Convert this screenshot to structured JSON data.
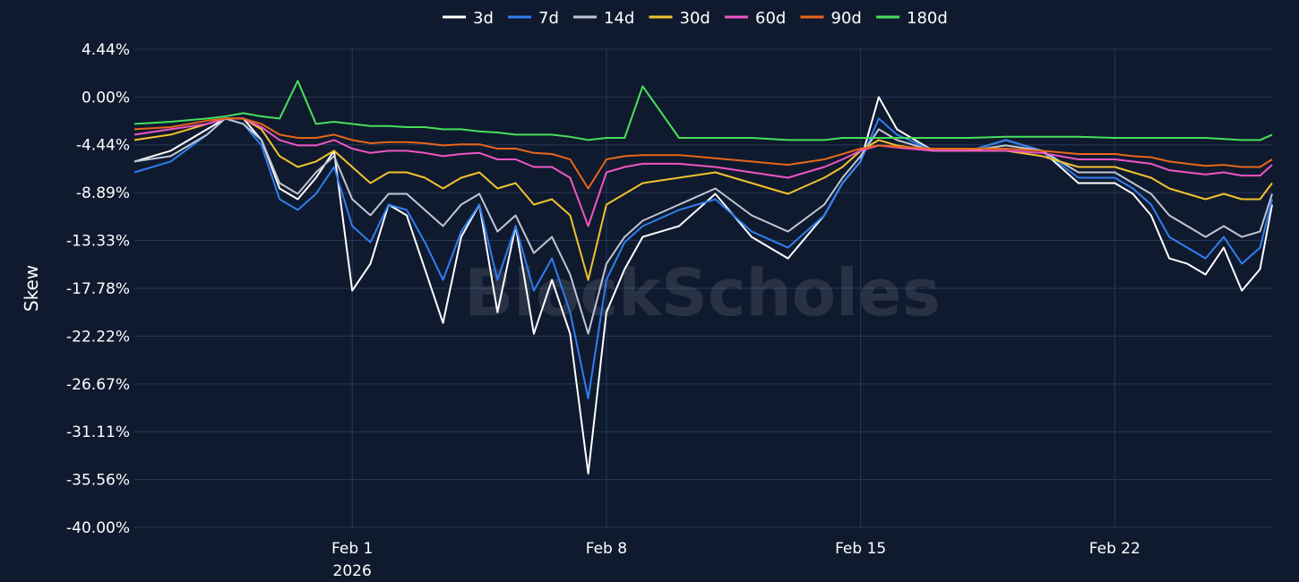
{
  "chart_data": {
    "type": "line",
    "ylabel": "Skew",
    "watermark": "BlockScholes",
    "legend_position": "top-center",
    "grid": true,
    "x_range": [
      "2026-01-26T00:00",
      "2026-02-26T08:00"
    ],
    "ylim": [
      -40.0,
      4.44
    ],
    "y_ticks": [
      "4.44%",
      "0.00%",
      "-4.44%",
      "-8.89%",
      "-13.33%",
      "-17.78%",
      "-22.22%",
      "-26.67%",
      "-31.11%",
      "-35.56%",
      "-40.00%"
    ],
    "y_tick_values": [
      4.44,
      0.0,
      -4.44,
      -8.89,
      -13.33,
      -17.78,
      -22.22,
      -26.67,
      -31.11,
      -35.56,
      -40.0
    ],
    "x_ticks": [
      {
        "date": "2026-02-01",
        "label": "Feb 1",
        "sublabel": "2026"
      },
      {
        "date": "2026-02-08",
        "label": "Feb 8",
        "sublabel": ""
      },
      {
        "date": "2026-02-15",
        "label": "Feb 15",
        "sublabel": ""
      },
      {
        "date": "2026-02-22",
        "label": "Feb 22",
        "sublabel": ""
      }
    ],
    "x": [
      "2026-01-26T00:00",
      "2026-01-27T00:00",
      "2026-01-28T00:00",
      "2026-01-28T12:00",
      "2026-01-29T00:00",
      "2026-01-29T12:00",
      "2026-01-30T00:00",
      "2026-01-30T12:00",
      "2026-01-31T00:00",
      "2026-01-31T12:00",
      "2026-02-01T00:00",
      "2026-02-01T12:00",
      "2026-02-02T00:00",
      "2026-02-02T12:00",
      "2026-02-03T00:00",
      "2026-02-03T12:00",
      "2026-02-04T00:00",
      "2026-02-04T12:00",
      "2026-02-05T00:00",
      "2026-02-05T12:00",
      "2026-02-06T00:00",
      "2026-02-06T12:00",
      "2026-02-07T00:00",
      "2026-02-07T12:00",
      "2026-02-08T00:00",
      "2026-02-08T12:00",
      "2026-02-09T00:00",
      "2026-02-10T00:00",
      "2026-02-11T00:00",
      "2026-02-12T00:00",
      "2026-02-13T00:00",
      "2026-02-14T00:00",
      "2026-02-14T12:00",
      "2026-02-15T00:00",
      "2026-02-15T12:00",
      "2026-02-16T00:00",
      "2026-02-17T00:00",
      "2026-02-18T00:00",
      "2026-02-19T00:00",
      "2026-02-20T00:00",
      "2026-02-21T00:00",
      "2026-02-22T00:00",
      "2026-02-22T12:00",
      "2026-02-23T00:00",
      "2026-02-23T12:00",
      "2026-02-24T00:00",
      "2026-02-24T12:00",
      "2026-02-25T00:00",
      "2026-02-25T12:00",
      "2026-02-26T00:00",
      "2026-02-26T08:00"
    ],
    "series": [
      {
        "name": "3d",
        "color": "#ffffff",
        "values": [
          -6.0,
          -5.0,
          -3.0,
          -2.0,
          -2.0,
          -4.0,
          -8.5,
          -9.5,
          -7.5,
          -5.0,
          -18.0,
          -15.5,
          -10.0,
          -11.0,
          -16.0,
          -21.0,
          -13.0,
          -10.0,
          -20.0,
          -12.0,
          -22.0,
          -17.0,
          -22.0,
          -35.0,
          -20.0,
          -16.0,
          -13.0,
          -12.0,
          -9.0,
          -13.0,
          -15.0,
          -11.0,
          -8.0,
          -6.0,
          0.0,
          -3.0,
          -5.0,
          -5.0,
          -4.0,
          -5.0,
          -8.0,
          -8.0,
          -9.0,
          -11.0,
          -15.0,
          -15.5,
          -16.5,
          -14.0,
          -18.0,
          -16.0,
          -10.0
        ]
      },
      {
        "name": "7d",
        "color": "#2f7ef0",
        "values": [
          -7.0,
          -6.0,
          -3.5,
          -2.0,
          -2.5,
          -4.5,
          -9.5,
          -10.5,
          -9.0,
          -6.5,
          -12.0,
          -13.5,
          -10.0,
          -10.5,
          -13.5,
          -17.0,
          -12.5,
          -10.0,
          -17.0,
          -12.0,
          -18.0,
          -15.0,
          -20.0,
          -28.0,
          -17.0,
          -13.5,
          -12.0,
          -10.5,
          -9.5,
          -12.5,
          -14.0,
          -11.0,
          -8.0,
          -6.0,
          -2.0,
          -3.5,
          -5.0,
          -5.0,
          -4.0,
          -5.0,
          -7.5,
          -7.5,
          -8.5,
          -10.0,
          -13.0,
          -14.0,
          -15.0,
          -13.0,
          -15.5,
          -14.0,
          -9.5
        ]
      },
      {
        "name": "14d",
        "color": "#c0c6d4",
        "values": [
          -6.0,
          -5.5,
          -3.5,
          -2.0,
          -2.5,
          -4.0,
          -8.0,
          -9.0,
          -7.0,
          -5.5,
          -9.5,
          -11.0,
          -9.0,
          -9.0,
          -10.5,
          -12.0,
          -10.0,
          -9.0,
          -12.5,
          -11.0,
          -14.5,
          -13.0,
          -16.5,
          -22.0,
          -15.5,
          -13.0,
          -11.5,
          -10.0,
          -8.5,
          -11.0,
          -12.5,
          -10.0,
          -7.5,
          -5.5,
          -3.0,
          -4.0,
          -5.0,
          -5.0,
          -4.5,
          -5.0,
          -7.0,
          -7.0,
          -8.0,
          -9.0,
          -11.0,
          -12.0,
          -13.0,
          -12.0,
          -13.0,
          -12.5,
          -9.0
        ]
      },
      {
        "name": "30d",
        "color": "#f2c12e",
        "values": [
          -4.0,
          -3.5,
          -2.5,
          -2.0,
          -2.0,
          -3.0,
          -5.5,
          -6.5,
          -6.0,
          -5.0,
          -6.5,
          -8.0,
          -7.0,
          -7.0,
          -7.5,
          -8.5,
          -7.5,
          -7.0,
          -8.5,
          -8.0,
          -10.0,
          -9.5,
          -11.0,
          -17.0,
          -10.0,
          -9.0,
          -8.0,
          -7.5,
          -7.0,
          -8.0,
          -9.0,
          -7.5,
          -6.5,
          -5.0,
          -4.0,
          -4.5,
          -5.0,
          -5.0,
          -5.0,
          -5.5,
          -6.5,
          -6.5,
          -7.0,
          -7.5,
          -8.5,
          -9.0,
          -9.5,
          -9.0,
          -9.5,
          -9.5,
          -8.0
        ]
      },
      {
        "name": "60d",
        "color": "#f055c3",
        "values": [
          -3.5,
          -3.0,
          -2.5,
          -2.0,
          -2.0,
          -2.8,
          -4.0,
          -4.5,
          -4.5,
          -4.0,
          -4.8,
          -5.2,
          -5.0,
          -5.0,
          -5.2,
          -5.5,
          -5.3,
          -5.2,
          -5.8,
          -5.8,
          -6.5,
          -6.5,
          -7.5,
          -12.0,
          -7.0,
          -6.5,
          -6.2,
          -6.2,
          -6.5,
          -7.0,
          -7.5,
          -6.5,
          -5.8,
          -5.0,
          -4.5,
          -4.7,
          -5.0,
          -5.0,
          -5.0,
          -5.2,
          -5.8,
          -5.8,
          -6.0,
          -6.2,
          -6.8,
          -7.0,
          -7.2,
          -7.0,
          -7.3,
          -7.3,
          -6.3
        ]
      },
      {
        "name": "90d",
        "color": "#e8661a",
        "values": [
          -3.0,
          -2.8,
          -2.2,
          -2.0,
          -2.0,
          -2.5,
          -3.5,
          -3.8,
          -3.8,
          -3.5,
          -4.0,
          -4.3,
          -4.2,
          -4.2,
          -4.3,
          -4.5,
          -4.4,
          -4.4,
          -4.8,
          -4.8,
          -5.2,
          -5.3,
          -5.8,
          -8.5,
          -5.8,
          -5.5,
          -5.4,
          -5.4,
          -5.7,
          -6.0,
          -6.3,
          -5.8,
          -5.3,
          -4.8,
          -4.5,
          -4.6,
          -4.8,
          -4.8,
          -4.8,
          -5.0,
          -5.3,
          -5.3,
          -5.5,
          -5.6,
          -6.0,
          -6.2,
          -6.4,
          -6.3,
          -6.5,
          -6.5,
          -5.8
        ]
      },
      {
        "name": "180d",
        "color": "#47e05c",
        "values": [
          -2.5,
          -2.3,
          -2.0,
          -1.8,
          -1.5,
          -1.8,
          -2.0,
          1.5,
          -2.5,
          -2.3,
          -2.5,
          -2.7,
          -2.7,
          -2.8,
          -2.8,
          -3.0,
          -3.0,
          -3.2,
          -3.3,
          -3.5,
          -3.5,
          -3.5,
          -3.7,
          -4.0,
          -3.8,
          -3.8,
          1.0,
          -3.8,
          -3.8,
          -3.8,
          -4.0,
          -4.0,
          -3.8,
          -3.8,
          -3.8,
          -3.8,
          -3.8,
          -3.8,
          -3.7,
          -3.7,
          -3.7,
          -3.8,
          -3.8,
          -3.8,
          -3.8,
          -3.8,
          -3.8,
          -3.9,
          -4.0,
          -4.0,
          -3.5
        ]
      }
    ]
  }
}
